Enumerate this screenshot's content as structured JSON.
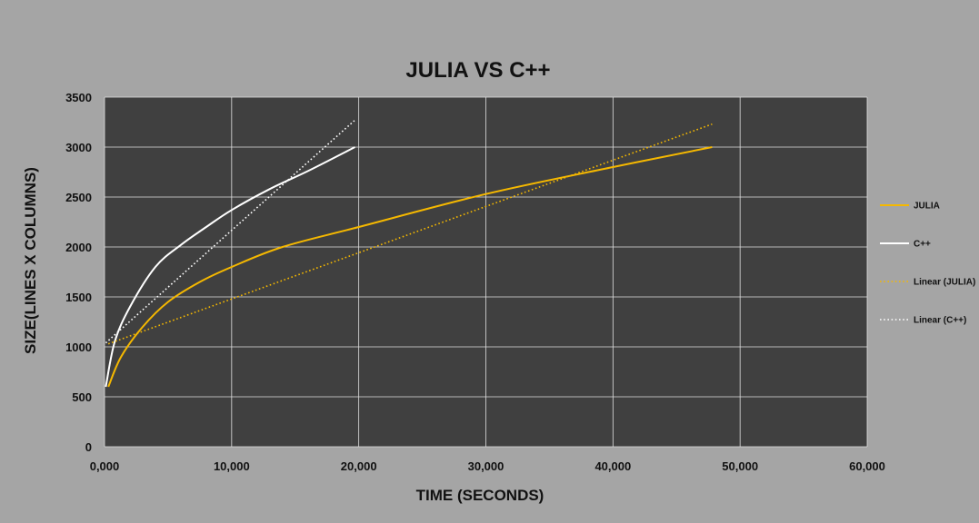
{
  "chart_data": {
    "type": "line",
    "title": "JULIA VS C++",
    "xlabel": "TIME (SECONDS)",
    "ylabel": "SIZE(LINES X COLUMNS)",
    "xlim": [
      0,
      60000
    ],
    "ylim": [
      0,
      3500
    ],
    "x_ticks": [
      0,
      10000,
      20000,
      30000,
      40000,
      50000,
      60000
    ],
    "x_tick_labels": [
      "0,000",
      "10,000",
      "20,000",
      "30,000",
      "40,000",
      "50,000",
      "60,000"
    ],
    "y_ticks": [
      0,
      500,
      1000,
      1500,
      2000,
      2500,
      3000,
      3500
    ],
    "y_tick_labels": [
      "0",
      "500",
      "1000",
      "1500",
      "2000",
      "2500",
      "3000",
      "3500"
    ],
    "grid": true,
    "legend_position": "right",
    "background": "#404040",
    "series": [
      {
        "name": "JULIA",
        "style": "solid",
        "color": "#f5b800",
        "x": [
          300,
          1300,
          3000,
          5000,
          7500,
          10000,
          14000,
          20000,
          30000,
          40000,
          47800
        ],
        "y": [
          600,
          900,
          1200,
          1450,
          1650,
          1800,
          2000,
          2200,
          2530,
          2800,
          3000
        ]
      },
      {
        "name": "C++",
        "style": "solid",
        "color": "#ffffff",
        "x": [
          100,
          800,
          2000,
          4000,
          6000,
          8000,
          10000,
          13000,
          16000,
          19700
        ],
        "y": [
          600,
          1050,
          1400,
          1800,
          2020,
          2200,
          2370,
          2580,
          2760,
          3000
        ]
      },
      {
        "name": "Linear (JULIA)",
        "style": "dotted",
        "color": "#f5b800",
        "x": [
          300,
          47800
        ],
        "y": [
          1030,
          3230
        ]
      },
      {
        "name": "Linear (C++)",
        "style": "dotted",
        "color": "#ffffff",
        "x": [
          100,
          19700
        ],
        "y": [
          1040,
          3270
        ]
      }
    ]
  }
}
